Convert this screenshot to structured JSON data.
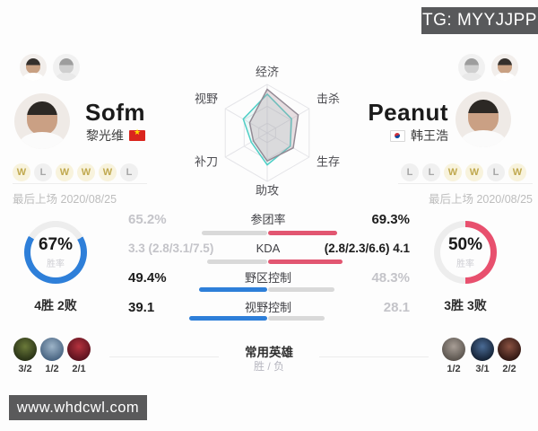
{
  "watermarks": {
    "tg": "TG: MYYJJPP",
    "site": "www.whdcwl.com"
  },
  "colors": {
    "left_accent": "#2e7fd9",
    "right_accent": "#e25671",
    "bar_gray": "#d9d9d9",
    "win_badge_text": "#c0a94f"
  },
  "players": {
    "left": {
      "name": "Sofm",
      "real_name": "黎光维",
      "flag": "vietnam-flag",
      "record": [
        "W",
        "L",
        "W",
        "W",
        "W",
        "L"
      ],
      "last_played_label": "最后上场",
      "last_played_date": "2020/08/25",
      "win_rate": "67%",
      "win_rate_pct": 67,
      "win_rate_label": "胜率",
      "win_loss": "4胜 2败",
      "ring_color": "#2e7fd9",
      "champions": [
        {
          "name": "champion-1",
          "score": "3/2",
          "colors": [
            "#6b7a3a",
            "#252e14"
          ]
        },
        {
          "name": "champion-2",
          "score": "1/2",
          "colors": [
            "#9db4c8",
            "#44607e"
          ]
        },
        {
          "name": "champion-3",
          "score": "2/1",
          "colors": [
            "#b5323e",
            "#55101c"
          ]
        }
      ]
    },
    "right": {
      "name": "Peanut",
      "real_name": "韩王浩",
      "flag": "korea-flag",
      "record": [
        "L",
        "L",
        "W",
        "W",
        "L",
        "W"
      ],
      "last_played_label": "最后上场",
      "last_played_date": "2020/08/25",
      "win_rate": "50%",
      "win_rate_pct": 50,
      "win_rate_label": "胜率",
      "win_loss": "3胜 3败",
      "ring_color": "#e8506e",
      "champions": [
        {
          "name": "champion-1",
          "score": "1/2",
          "colors": [
            "#a89e96",
            "#56504a"
          ]
        },
        {
          "name": "champion-2",
          "score": "3/1",
          "colors": [
            "#4a6b95",
            "#121e30"
          ]
        },
        {
          "name": "champion-3",
          "score": "2/2",
          "colors": [
            "#8a5242",
            "#2c1410"
          ]
        }
      ]
    }
  },
  "stats": {
    "rows": [
      {
        "label": "参团率",
        "left_text": "65.2%",
        "right_text": "69.3%",
        "left_value": 65.2,
        "right_value": 69.3,
        "winner": "right"
      },
      {
        "label": "KDA",
        "left_text": "3.3 (2.8/3.1/7.5)",
        "right_text": "(2.8/2.3/6.6) 4.1",
        "left_value": 3.3,
        "right_value": 4.1,
        "winner": "right"
      },
      {
        "label": "野区控制",
        "left_text": "49.4%",
        "right_text": "48.3%",
        "left_value": 49.4,
        "right_value": 48.3,
        "winner": "left"
      },
      {
        "label": "视野控制",
        "left_text": "39.1",
        "right_text": "28.1",
        "left_value": 39.1,
        "right_value": 28.1,
        "winner": "left"
      }
    ]
  },
  "chart_data": {
    "type": "radar",
    "axes": [
      "经济",
      "击杀",
      "生存",
      "助攻",
      "补刀",
      "视野"
    ],
    "axis_order": "clockwise from top",
    "scale": [
      0,
      1
    ],
    "grid": true,
    "series": [
      {
        "name": "Sofm",
        "color": "#4fcfc6",
        "fill": "rgba(79,207,198,0.10)",
        "values": [
          0.8,
          0.58,
          0.55,
          0.66,
          0.38,
          0.57
        ]
      },
      {
        "name": "Peanut",
        "color": "#948b95",
        "fill": "rgba(180,150,160,0.30)",
        "values": [
          0.9,
          0.74,
          0.62,
          0.58,
          0.33,
          0.42
        ]
      }
    ]
  },
  "champions_section": {
    "title": "常用英雄",
    "subtitle": "胜 / 负"
  }
}
